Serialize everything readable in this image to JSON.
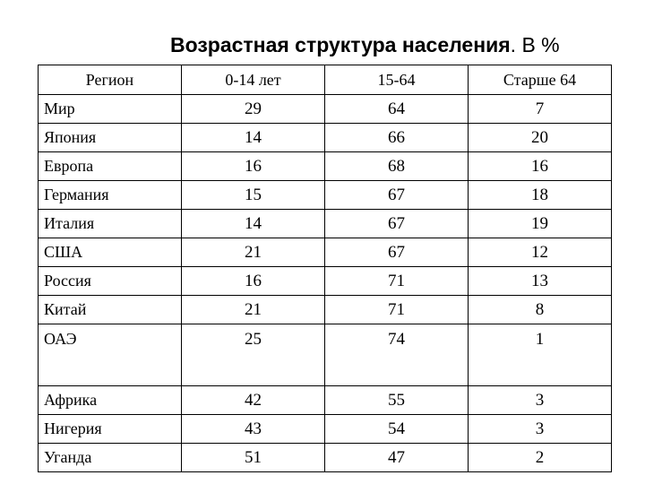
{
  "title": {
    "main": "Возрастная структура населения",
    "suffix": ". В %"
  },
  "table": {
    "headers": [
      "Регион",
      "0-14 лет",
      "15-64",
      "Старше 64"
    ],
    "rows": [
      [
        "Мир",
        "29",
        "64",
        "7"
      ],
      [
        "Япония",
        "14",
        "66",
        "20"
      ],
      [
        "Европа",
        "16",
        "68",
        "16"
      ],
      [
        "Германия",
        "15",
        "67",
        "18"
      ],
      [
        "Италия",
        "14",
        "67",
        "19"
      ],
      [
        "США",
        "21",
        "67",
        "12"
      ],
      [
        "Россия",
        "16",
        "71",
        "13"
      ],
      [
        "Китай",
        "21",
        "71",
        "8"
      ],
      [
        "ОАЭ",
        "25",
        "74",
        "1"
      ],
      [
        "Африка",
        "42",
        "55",
        "3"
      ],
      [
        "Нигерия",
        "43",
        "54",
        "3"
      ],
      [
        "Уганда",
        "51",
        "47",
        "2"
      ]
    ]
  }
}
